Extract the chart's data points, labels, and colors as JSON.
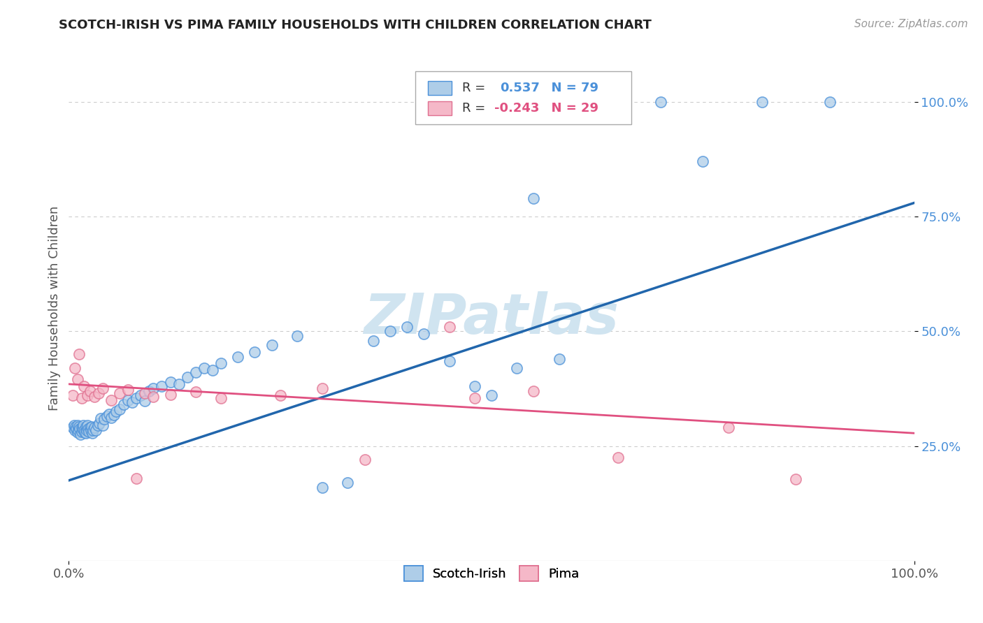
{
  "title": "SCOTCH-IRISH VS PIMA FAMILY HOUSEHOLDS WITH CHILDREN CORRELATION CHART",
  "source": "Source: ZipAtlas.com",
  "ylabel": "Family Households with Children",
  "ytick_labels": [
    "25.0%",
    "50.0%",
    "75.0%",
    "100.0%"
  ],
  "ytick_positions": [
    0.25,
    0.5,
    0.75,
    1.0
  ],
  "xlim": [
    0.0,
    1.0
  ],
  "ylim": [
    0.0,
    1.1
  ],
  "legend_label1": "Scotch-Irish",
  "legend_label2": "Pima",
  "r1": "0.537",
  "n1": "79",
  "r2": "-0.243",
  "n2": "29",
  "color_blue_face": "#aecde8",
  "color_blue_edge": "#4a90d9",
  "color_blue_line": "#2166ac",
  "color_pink_face": "#f5b8c8",
  "color_pink_edge": "#e07090",
  "color_pink_line": "#e05080",
  "color_ytick": "#4a90d9",
  "watermark": "ZIPatlas",
  "watermark_color": "#d0e4f0",
  "si_x": [
    0.005,
    0.006,
    0.007,
    0.008,
    0.009,
    0.01,
    0.01,
    0.011,
    0.012,
    0.013,
    0.014,
    0.015,
    0.015,
    0.016,
    0.017,
    0.018,
    0.019,
    0.02,
    0.02,
    0.021,
    0.022,
    0.023,
    0.024,
    0.025,
    0.026,
    0.027,
    0.028,
    0.029,
    0.03,
    0.032,
    0.034,
    0.036,
    0.038,
    0.04,
    0.042,
    0.045,
    0.048,
    0.05,
    0.053,
    0.056,
    0.06,
    0.065,
    0.07,
    0.075,
    0.08,
    0.085,
    0.09,
    0.095,
    0.1,
    0.11,
    0.12,
    0.13,
    0.14,
    0.15,
    0.16,
    0.17,
    0.18,
    0.2,
    0.22,
    0.24,
    0.27,
    0.3,
    0.33,
    0.36,
    0.38,
    0.4,
    0.42,
    0.45,
    0.48,
    0.5,
    0.53,
    0.55,
    0.58,
    0.62,
    0.65,
    0.7,
    0.75,
    0.82,
    0.9
  ],
  "si_y": [
    0.29,
    0.295,
    0.285,
    0.292,
    0.288,
    0.28,
    0.295,
    0.285,
    0.292,
    0.288,
    0.275,
    0.29,
    0.282,
    0.288,
    0.295,
    0.285,
    0.28,
    0.292,
    0.278,
    0.285,
    0.295,
    0.288,
    0.282,
    0.29,
    0.285,
    0.292,
    0.278,
    0.284,
    0.29,
    0.285,
    0.295,
    0.3,
    0.31,
    0.295,
    0.308,
    0.315,
    0.32,
    0.312,
    0.318,
    0.325,
    0.33,
    0.34,
    0.35,
    0.345,
    0.355,
    0.36,
    0.348,
    0.37,
    0.375,
    0.38,
    0.39,
    0.385,
    0.4,
    0.41,
    0.42,
    0.415,
    0.43,
    0.445,
    0.455,
    0.47,
    0.49,
    0.16,
    0.17,
    0.48,
    0.5,
    0.51,
    0.495,
    0.435,
    0.38,
    0.36,
    0.42,
    0.79,
    0.44,
    1.0,
    1.0,
    1.0,
    0.87,
    1.0,
    1.0
  ],
  "pi_x": [
    0.005,
    0.007,
    0.01,
    0.012,
    0.015,
    0.018,
    0.022,
    0.025,
    0.03,
    0.035,
    0.04,
    0.05,
    0.06,
    0.07,
    0.08,
    0.09,
    0.1,
    0.12,
    0.15,
    0.18,
    0.25,
    0.3,
    0.35,
    0.45,
    0.48,
    0.55,
    0.65,
    0.78,
    0.86
  ],
  "pi_y": [
    0.36,
    0.42,
    0.395,
    0.45,
    0.355,
    0.38,
    0.36,
    0.37,
    0.358,
    0.365,
    0.375,
    0.35,
    0.365,
    0.372,
    0.18,
    0.365,
    0.358,
    0.362,
    0.368,
    0.355,
    0.36,
    0.375,
    0.22,
    0.51,
    0.355,
    0.37,
    0.225,
    0.29,
    0.178
  ],
  "si_line_x": [
    0.0,
    1.0
  ],
  "si_line_y": [
    0.175,
    0.78
  ],
  "pi_line_x": [
    0.0,
    1.0
  ],
  "pi_line_y": [
    0.385,
    0.278
  ]
}
